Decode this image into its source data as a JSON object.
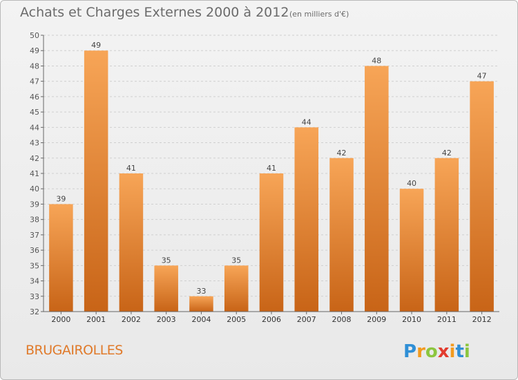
{
  "title": "Achats et Charges Externes 2000 à 2012",
  "subtitle": "(en milliers d'€)",
  "town": "BRUGAIROLLES",
  "brand": "Proxiti",
  "colors": {
    "bar_light": "#f7a557",
    "bar_dark": "#c86417",
    "town": "#e07a2a",
    "grid": "#cfcfcf"
  },
  "chart_data": {
    "type": "bar",
    "categories": [
      "2000",
      "2001",
      "2002",
      "2003",
      "2004",
      "2005",
      "2006",
      "2007",
      "2008",
      "2009",
      "2010",
      "2011",
      "2012"
    ],
    "values": [
      39,
      49,
      41,
      35,
      33,
      35,
      41,
      44,
      42,
      48,
      40,
      42,
      47
    ],
    "title": "Achats et Charges Externes 2000 à 2012",
    "ylim": [
      32,
      50
    ],
    "yticks": [
      32,
      33,
      34,
      35,
      36,
      37,
      38,
      39,
      40,
      41,
      42,
      43,
      44,
      45,
      46,
      47,
      48,
      49,
      50
    ],
    "grid": "horizontal dashed",
    "legend": "none"
  }
}
